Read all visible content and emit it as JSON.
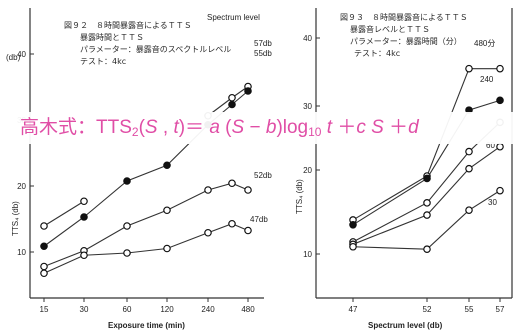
{
  "charts": [
    {
      "caption_lines": [
        "図９２　８時間暴露音によるＴＴＳ",
        "暴露時間とＴＴＳ",
        "パラメーター：暴露音のスペクトルレベル",
        "テスト：4kc"
      ],
      "caption_title": "Spectrum level",
      "y_label": "TTS₄ (db)",
      "y_label_top": "(db)",
      "x_label": "Exposure time (min)",
      "x_ticks": [
        "15",
        "30",
        "60",
        "120",
        "240",
        "480"
      ],
      "y_ticks": [
        "10",
        "20",
        "30",
        "40"
      ]
    },
    {
      "caption_lines": [
        "図９３　８時間暴露音によるＴＴＳ",
        "暴露音レベルとＴＴＳ",
        "パラメーター：暴露時間（分）",
        "テスト：4kc"
      ],
      "y_label": "TTS₄ (db)",
      "x_label": "Spectrum level (db)",
      "x_ticks": [
        "47",
        "52",
        "55",
        "57"
      ],
      "y_ticks": [
        "10",
        "20",
        "30",
        "40"
      ]
    }
  ],
  "formula": {
    "prefix": "高木式：TTS",
    "sub2": "2",
    "open": "(",
    "S": "S",
    "comma": " , ",
    "t": "t",
    "mid": ")＝ ",
    "a": "a",
    "paren_open": " (",
    "S2": "S",
    "minus": " − ",
    "b": "b",
    "log": ")log",
    "sub10": "10",
    "space": " ",
    "t2": "t",
    "plus": " ＋",
    "c": "c",
    "S3": " S",
    "plus2": " ＋",
    "d": "d"
  },
  "chart_data": [
    {
      "type": "line",
      "title": "",
      "xlabel": "Exposure time (min)",
      "ylabel": "TTS₄ (db)",
      "categories": [
        "15",
        "30",
        "60",
        "120",
        "240",
        "360",
        "480"
      ],
      "ylim": [
        0,
        50
      ],
      "series": [
        {
          "name": "57db",
          "marker": "open",
          "values": [
            null,
            null,
            null,
            null,
            40.5,
            44.5,
            47
          ]
        },
        {
          "name": "55db",
          "marker": "filled",
          "values": [
            11.5,
            18,
            26,
            29.5,
            38.5,
            43,
            46
          ]
        },
        {
          "name": "",
          "marker": "open",
          "values": [
            16,
            21.5,
            null,
            null,
            null,
            null,
            null
          ]
        },
        {
          "name": "52db",
          "marker": "open",
          "values": [
            7,
            10.5,
            16,
            19.5,
            24,
            25.5,
            24
          ]
        },
        {
          "name": "47db",
          "marker": "open",
          "values": [
            5.5,
            9.5,
            10,
            11,
            14.5,
            16.5,
            15
          ]
        }
      ]
    },
    {
      "type": "line",
      "title": "",
      "xlabel": "Spectrum level (db)",
      "ylabel": "TTS₄ (db)",
      "categories": [
        "47",
        "52",
        "55",
        "57"
      ],
      "ylim": [
        0,
        50
      ],
      "series": [
        {
          "name": "480分",
          "marker": "open",
          "values": [
            16,
            25,
            47,
            47
          ]
        },
        {
          "name": "240",
          "marker": "filled",
          "values": [
            15,
            24.5,
            38.5,
            40.5
          ]
        },
        {
          "name": "60",
          "marker": "open",
          "values": [
            11.5,
            19.5,
            30,
            36
          ]
        },
        {
          "name": "",
          "marker": "open",
          "values": [
            11,
            17,
            26.5,
            31
          ]
        },
        {
          "name": "30",
          "marker": "open",
          "values": [
            10.5,
            10,
            18,
            22
          ]
        }
      ]
    }
  ]
}
